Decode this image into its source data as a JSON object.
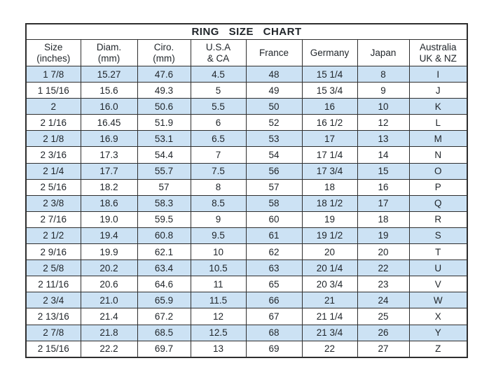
{
  "title": "RING  SIZE  CHART",
  "colors": {
    "row_stripe": "#cce2f4",
    "grid": "#2e2e2e",
    "text": "#1f2429",
    "background": "#ffffff"
  },
  "chart_data": {
    "type": "table",
    "title": "RING SIZE CHART",
    "legend_position": "none",
    "grid": true,
    "columns": [
      {
        "line1": "Size",
        "line2": "(inches)"
      },
      {
        "line1": "Diam.",
        "line2": "(mm)"
      },
      {
        "line1": "Ciro.",
        "line2": "(mm)"
      },
      {
        "line1": "U.S.A",
        "line2": "& CA"
      },
      {
        "line1": "France",
        "line2": ""
      },
      {
        "line1": "Germany",
        "line2": ""
      },
      {
        "line1": "Japan",
        "line2": ""
      },
      {
        "line1": "Australia",
        "line2": "UK & NZ"
      }
    ],
    "rows": [
      [
        "1 7/8",
        "15.27",
        "47.6",
        "4.5",
        "48",
        "15 1/4",
        "8",
        "I"
      ],
      [
        "1 15/16",
        "15.6",
        "49.3",
        "5",
        "49",
        "15 3/4",
        "9",
        "J"
      ],
      [
        "2",
        "16.0",
        "50.6",
        "5.5",
        "50",
        "16",
        "10",
        "K"
      ],
      [
        "2 1/16",
        "16.45",
        "51.9",
        "6",
        "52",
        "16 1/2",
        "12",
        "L"
      ],
      [
        "2 1/8",
        "16.9",
        "53.1",
        "6.5",
        "53",
        "17",
        "13",
        "M"
      ],
      [
        "2 3/16",
        "17.3",
        "54.4",
        "7",
        "54",
        "17 1/4",
        "14",
        "N"
      ],
      [
        "2 1/4",
        "17.7",
        "55.7",
        "7.5",
        "56",
        "17 3/4",
        "15",
        "O"
      ],
      [
        "2 5/16",
        "18.2",
        "57",
        "8",
        "57",
        "18",
        "16",
        "P"
      ],
      [
        "2 3/8",
        "18.6",
        "58.3",
        "8.5",
        "58",
        "18 1/2",
        "17",
        "Q"
      ],
      [
        "2 7/16",
        "19.0",
        "59.5",
        "9",
        "60",
        "19",
        "18",
        "R"
      ],
      [
        "2 1/2",
        "19.4",
        "60.8",
        "9.5",
        "61",
        "19 1/2",
        "19",
        "S"
      ],
      [
        "2 9/16",
        "19.9",
        "62.1",
        "10",
        "62",
        "20",
        "20",
        "T"
      ],
      [
        "2 5/8",
        "20.2",
        "63.4",
        "10.5",
        "63",
        "20 1/4",
        "22",
        "U"
      ],
      [
        "2 11/16",
        "20.6",
        "64.6",
        "11",
        "65",
        "20 3/4",
        "23",
        "V"
      ],
      [
        "2 3/4",
        "21.0",
        "65.9",
        "11.5",
        "66",
        "21",
        "24",
        "W"
      ],
      [
        "2 13/16",
        "21.4",
        "67.2",
        "12",
        "67",
        "21 1/4",
        "25",
        "X"
      ],
      [
        "2 7/8",
        "21.8",
        "68.5",
        "12.5",
        "68",
        "21 3/4",
        "26",
        "Y"
      ],
      [
        "2 15/16",
        "22.2",
        "69.7",
        "13",
        "69",
        "22",
        "27",
        "Z"
      ]
    ]
  }
}
